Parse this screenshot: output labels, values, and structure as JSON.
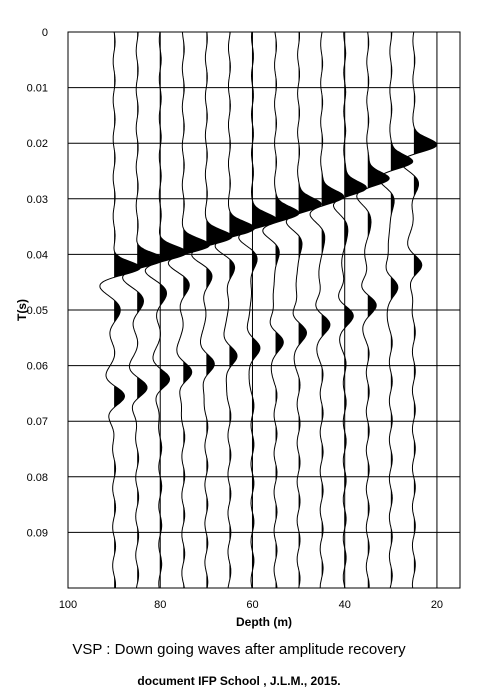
{
  "caption": "VSP : Down going waves after amplitude recovery",
  "credit": "document IFP School , J.L.M., 2015.",
  "chart_data": {
    "type": "seismic-wiggle",
    "title": "",
    "xlabel": "Depth (m)",
    "ylabel": "T(s)",
    "x_ticks": [
      100,
      80,
      60,
      40,
      20
    ],
    "y_ticks": [
      0,
      0.01,
      0.02,
      0.03,
      0.04,
      0.05,
      0.06,
      0.07,
      0.08,
      0.09
    ],
    "xlim": [
      100,
      15
    ],
    "ylim": [
      0,
      0.1
    ],
    "y_inverted": true,
    "traces": [
      {
        "depth": 90,
        "first_arrival": 0.0425,
        "secondary": 0.0655
      },
      {
        "depth": 85,
        "first_arrival": 0.041,
        "secondary": 0.064
      },
      {
        "depth": 80,
        "first_arrival": 0.0398,
        "secondary": 0.0625
      },
      {
        "depth": 75,
        "first_arrival": 0.0385,
        "secondary": 0.0612
      },
      {
        "depth": 70,
        "first_arrival": 0.037,
        "secondary": 0.0597
      },
      {
        "depth": 65,
        "first_arrival": 0.0355,
        "secondary": 0.0582
      },
      {
        "depth": 60,
        "first_arrival": 0.034,
        "secondary": 0.0567
      },
      {
        "depth": 55,
        "first_arrival": 0.0328,
        "secondary": 0.0555
      },
      {
        "depth": 50,
        "first_arrival": 0.0312,
        "secondary": 0.0538
      },
      {
        "depth": 45,
        "first_arrival": 0.0298,
        "secondary": 0.0523
      },
      {
        "depth": 40,
        "first_arrival": 0.0282,
        "secondary": 0.0507
      },
      {
        "depth": 35,
        "first_arrival": 0.0265,
        "secondary": 0.0488
      },
      {
        "depth": 30,
        "first_arrival": 0.0235,
        "secondary": 0.0457
      },
      {
        "depth": 25,
        "first_arrival": 0.0205,
        "secondary": 0.042
      }
    ],
    "grid": true,
    "fill_color": "#000000",
    "line_color": "#000000"
  }
}
